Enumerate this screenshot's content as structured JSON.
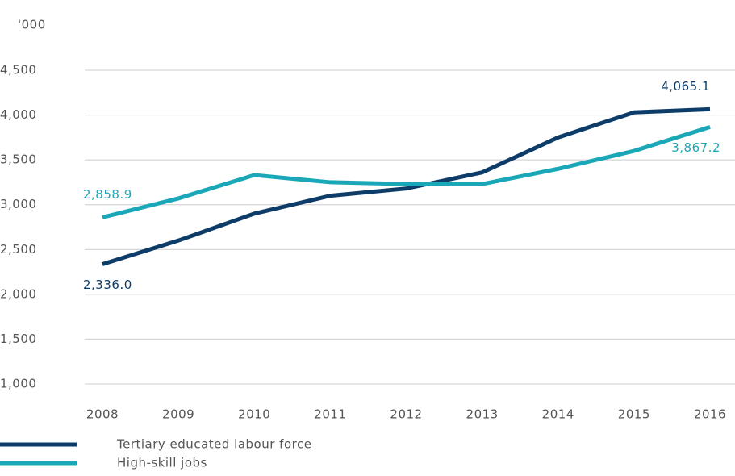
{
  "chart_data": {
    "type": "line",
    "y_axis_label": "'000",
    "categories": [
      "2008",
      "2009",
      "2010",
      "2011",
      "2012",
      "2013",
      "2014",
      "2015",
      "2016"
    ],
    "series": [
      {
        "name": "Tertiary educated labour force",
        "color": "#0d3c68",
        "values": [
          2336.0,
          2600,
          2900,
          3100,
          3180,
          3360,
          3750,
          4030,
          4065.1
        ],
        "value_labels": [
          "2,336.0",
          null,
          null,
          null,
          null,
          null,
          null,
          null,
          "4,065.1"
        ]
      },
      {
        "name": "High-skill jobs",
        "color": "#1aa8b8",
        "values": [
          2858.9,
          3070,
          3330,
          3250,
          3230,
          3230,
          3400,
          3600,
          3867.2
        ],
        "value_labels": [
          "2,858.9",
          null,
          null,
          null,
          null,
          null,
          null,
          null,
          "3,867.2"
        ]
      }
    ],
    "ylim": [
      1000,
      4500
    ],
    "yticks": [
      {
        "value": 1000,
        "label": "1,000"
      },
      {
        "value": 1500,
        "label": "1,500"
      },
      {
        "value": 2000,
        "label": "2,000"
      },
      {
        "value": 2500,
        "label": "2,500"
      },
      {
        "value": 3000,
        "label": "3,000"
      },
      {
        "value": 3500,
        "label": "3,500"
      },
      {
        "value": 4000,
        "label": "4,000"
      },
      {
        "value": 4500,
        "label": "4,500"
      }
    ],
    "grid": true,
    "legend": "bottom-left"
  }
}
